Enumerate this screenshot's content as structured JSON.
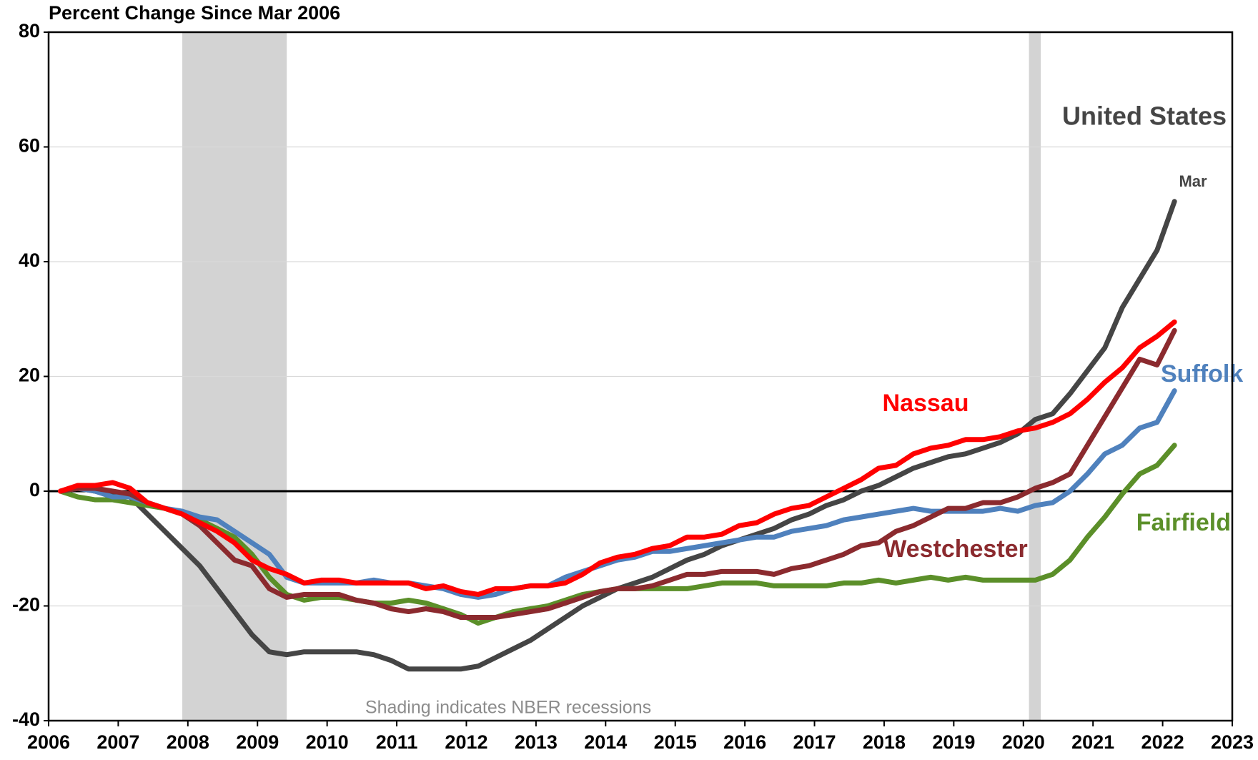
{
  "chart_data": {
    "type": "line",
    "title": "Percent Change Since Mar 2006",
    "annotations": {
      "note": "Shading indicates NBER recessions",
      "end_label": "Mar"
    },
    "recessions": [
      [
        2007.92,
        2009.42
      ],
      [
        2020.08,
        2020.25
      ]
    ],
    "xlim": [
      2006,
      2023
    ],
    "xticks": [
      2006,
      2007,
      2008,
      2009,
      2010,
      2011,
      2012,
      2013,
      2014,
      2015,
      2016,
      2017,
      2018,
      2019,
      2020,
      2021,
      2022,
      2023
    ],
    "ylim": [
      -40,
      80
    ],
    "yticks": [
      -40,
      -20,
      0,
      20,
      40,
      60,
      80
    ],
    "grid": true,
    "x": [
      2006.17,
      2006.42,
      2006.67,
      2006.92,
      2007.17,
      2007.42,
      2007.67,
      2007.92,
      2008.17,
      2008.42,
      2008.67,
      2008.92,
      2009.17,
      2009.42,
      2009.67,
      2009.92,
      2010.17,
      2010.42,
      2010.67,
      2010.92,
      2011.17,
      2011.42,
      2011.67,
      2011.92,
      2012.17,
      2012.42,
      2012.67,
      2012.92,
      2013.17,
      2013.42,
      2013.67,
      2013.92,
      2014.17,
      2014.42,
      2014.67,
      2014.92,
      2015.17,
      2015.42,
      2015.67,
      2015.92,
      2016.17,
      2016.42,
      2016.67,
      2016.92,
      2017.17,
      2017.42,
      2017.67,
      2017.92,
      2018.17,
      2018.42,
      2018.67,
      2018.92,
      2019.17,
      2019.42,
      2019.67,
      2019.92,
      2020.17,
      2020.42,
      2020.67,
      2020.92,
      2021.17,
      2021.42,
      2021.67,
      2021.92,
      2022.17
    ],
    "series": [
      {
        "name": "United States",
        "color": "#454545",
        "values": [
          0,
          0.5,
          0,
          -0.5,
          -1,
          -4,
          -7,
          -10,
          -13,
          -17,
          -21,
          -25,
          -28,
          -28.5,
          -28,
          -28,
          -28,
          -28,
          -28.5,
          -29.5,
          -31,
          -31,
          -31,
          -31,
          -30.5,
          -29,
          -27.5,
          -26,
          -24,
          -22,
          -20,
          -18.5,
          -17,
          -16,
          -15,
          -13.5,
          -12,
          -11,
          -9.5,
          -8.5,
          -7.5,
          -6.5,
          -5,
          -4,
          -2.5,
          -1.5,
          0,
          1,
          2.5,
          4,
          5,
          6,
          6.5,
          7.5,
          8.5,
          10,
          12.5,
          13.5,
          17,
          21,
          25,
          32,
          37,
          42,
          50.5
        ]
      },
      {
        "name": "Nassau",
        "color": "#ff0000",
        "values": [
          0,
          1,
          1,
          1.5,
          0.5,
          -2,
          -3,
          -4,
          -5.5,
          -7,
          -9,
          -12,
          -13.5,
          -14.5,
          -16,
          -15.5,
          -15.5,
          -16,
          -16,
          -16,
          -16,
          -17,
          -16.5,
          -17.5,
          -18,
          -17,
          -17,
          -16.5,
          -16.5,
          -16,
          -14.5,
          -12.5,
          -11.5,
          -11,
          -10,
          -9.5,
          -8,
          -8,
          -7.5,
          -6,
          -5.5,
          -4,
          -3,
          -2.5,
          -1,
          0.5,
          2,
          4,
          4.5,
          6.5,
          7.5,
          8,
          9,
          9,
          9.5,
          10.5,
          11,
          12,
          13.5,
          16,
          19,
          21.5,
          25,
          27,
          29.5
        ]
      },
      {
        "name": "Suffolk",
        "color": "#4f81bd",
        "values": [
          0,
          0.5,
          0,
          -1,
          -1,
          -2,
          -3,
          -3.5,
          -4.5,
          -5,
          -7,
          -9,
          -11,
          -15,
          -16,
          -16,
          -16,
          -16,
          -15.5,
          -16,
          -16,
          -16.5,
          -17,
          -18,
          -18.5,
          -18,
          -17,
          -16.5,
          -16.5,
          -15,
          -14,
          -13,
          -12,
          -11.5,
          -10.5,
          -10.5,
          -10,
          -9.5,
          -9,
          -8.5,
          -8,
          -8,
          -7,
          -6.5,
          -6,
          -5,
          -4.5,
          -4,
          -3.5,
          -3,
          -3.5,
          -3.5,
          -3.5,
          -3.5,
          -3,
          -3.5,
          -2.5,
          -2,
          0,
          3,
          6.5,
          8,
          11,
          12,
          17.5
        ]
      },
      {
        "name": "Westchester",
        "color": "#8b2a2e",
        "values": [
          0,
          0.5,
          0.5,
          0,
          -0.5,
          -2,
          -3,
          -4,
          -6,
          -9,
          -12,
          -13,
          -17,
          -18.5,
          -18,
          -18,
          -18,
          -19,
          -19.5,
          -20.5,
          -21,
          -20.5,
          -21,
          -22,
          -22,
          -22,
          -21.5,
          -21,
          -20.5,
          -19.5,
          -18.5,
          -17.5,
          -17,
          -17,
          -16.5,
          -15.5,
          -14.5,
          -14.5,
          -14,
          -14,
          -14,
          -14.5,
          -13.5,
          -13,
          -12,
          -11,
          -9.5,
          -9,
          -7,
          -6,
          -4.5,
          -3,
          -3,
          -2,
          -2,
          -1,
          0.5,
          1.5,
          3,
          8,
          13,
          18,
          23,
          22,
          28
        ]
      },
      {
        "name": "Fairfield",
        "color": "#5b8f29",
        "values": [
          0,
          -1,
          -1.5,
          -1.5,
          -2,
          -2.5,
          -3,
          -4,
          -5,
          -6.5,
          -8,
          -11,
          -15,
          -18,
          -19,
          -18.5,
          -18.5,
          -19,
          -19.5,
          -19.5,
          -19,
          -19.5,
          -20.5,
          -21.5,
          -23,
          -22,
          -21,
          -20.5,
          -20,
          -19,
          -18,
          -17.5,
          -17,
          -17,
          -17,
          -17,
          -17,
          -16.5,
          -16,
          -16,
          -16,
          -16.5,
          -16.5,
          -16.5,
          -16.5,
          -16,
          -16,
          -15.5,
          -16,
          -15.5,
          -15,
          -15.5,
          -15,
          -15.5,
          -15.5,
          -15.5,
          -15.5,
          -14.5,
          -12,
          -8,
          -4.5,
          -0.5,
          3,
          4.5,
          8
        ]
      }
    ]
  }
}
